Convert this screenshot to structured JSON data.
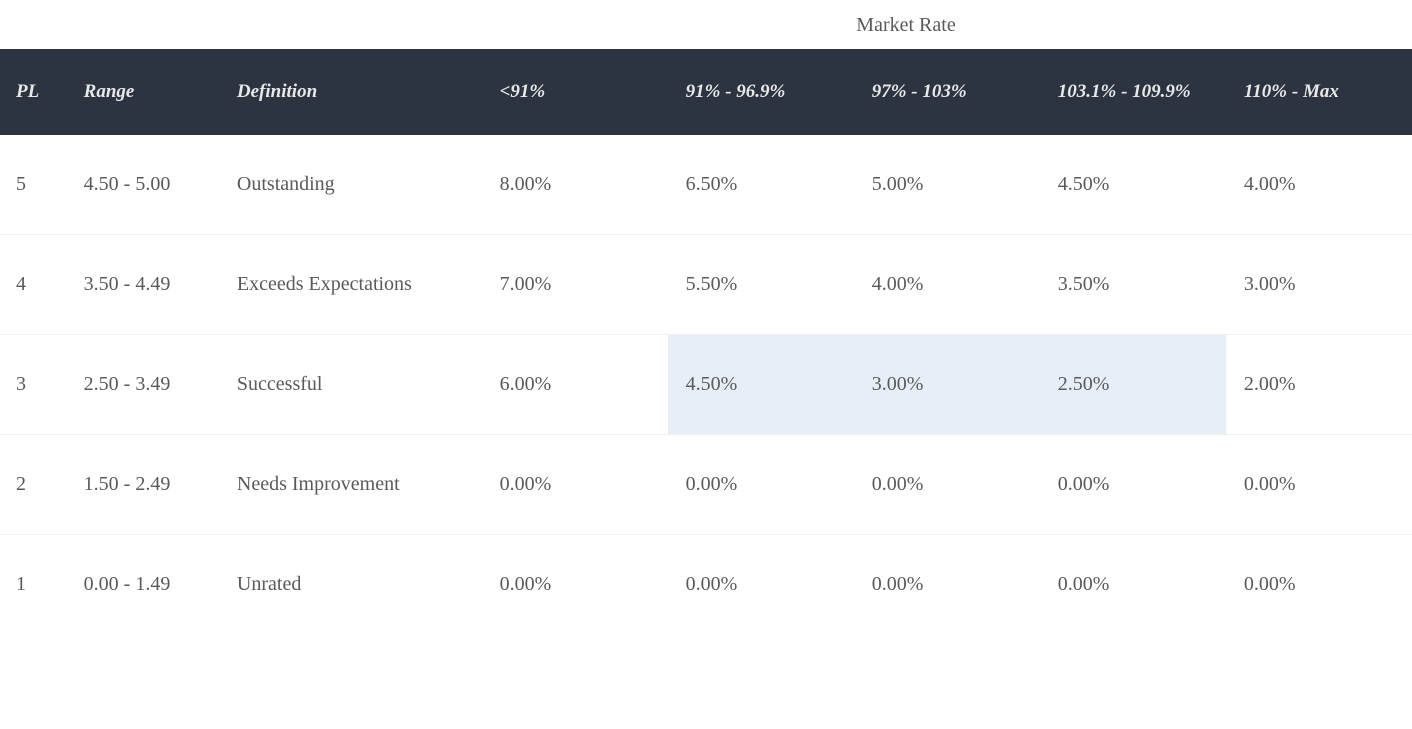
{
  "table": {
    "super_header": "Market Rate",
    "columns": [
      "PL",
      "Range",
      "Definition",
      "<91%",
      "91% - 96.9%",
      "97% - 103%",
      "103.1% - 109.9%",
      "110% - Max"
    ],
    "rows": [
      {
        "pl": "5",
        "range": "4.50 - 5.00",
        "definition": "Outstanding",
        "rates": [
          "8.00%",
          "6.50%",
          "5.00%",
          "4.50%",
          "4.00%"
        ],
        "highlight": []
      },
      {
        "pl": "4",
        "range": "3.50 - 4.49",
        "definition": "Exceeds Expectations",
        "rates": [
          "7.00%",
          "5.50%",
          "4.00%",
          "3.50%",
          "3.00%"
        ],
        "highlight": []
      },
      {
        "pl": "3",
        "range": "2.50 - 3.49",
        "definition": "Successful",
        "rates": [
          "6.00%",
          "4.50%",
          "3.00%",
          "2.50%",
          "2.00%"
        ],
        "highlight": [
          1,
          2,
          3
        ]
      },
      {
        "pl": "2",
        "range": "1.50 - 2.49",
        "definition": "Needs Improvement",
        "rates": [
          "0.00%",
          "0.00%",
          "0.00%",
          "0.00%",
          "0.00%"
        ],
        "highlight": []
      },
      {
        "pl": "1",
        "range": "0.00 - 1.49",
        "definition": "Unrated",
        "rates": [
          "0.00%",
          "0.00%",
          "0.00%",
          "0.00%",
          "0.00%"
        ],
        "highlight": []
      }
    ],
    "colors": {
      "header_bg": "#2d3441",
      "header_text": "#e8e8e8",
      "body_text": "#5a5a5a",
      "row_border": "#f0f0f0",
      "highlight_bg": "#e8eef7",
      "background": "#ffffff"
    },
    "typography": {
      "font_family": "Georgia, serif",
      "header_fontsize": 19,
      "header_style": "italic bold",
      "body_fontsize": 20,
      "super_header_fontsize": 20
    },
    "column_widths": {
      "pl": 60,
      "range": 140,
      "definition": 240,
      "rate": 170
    }
  }
}
